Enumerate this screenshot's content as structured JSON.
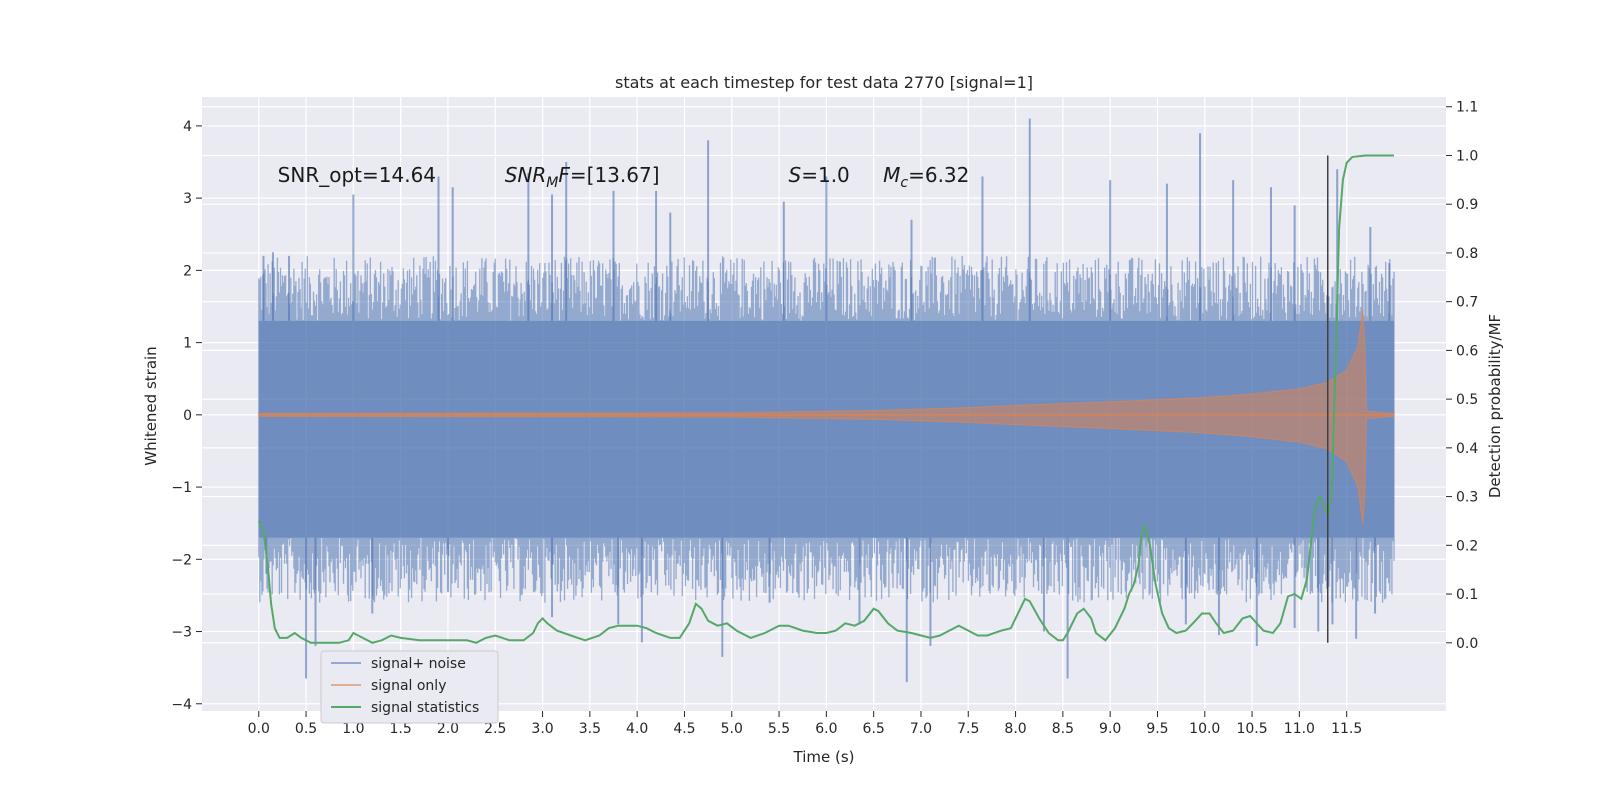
{
  "chart_data": {
    "type": "line",
    "title": "stats at each timestep for test data 2770 [signal=1]",
    "xlabel": "Time (s)",
    "ylabel": "Whitened strain",
    "ylabel_right": "Detection probability/MF",
    "xlim": [
      -0.6,
      12.55
    ],
    "ylim": [
      -4.1,
      4.4
    ],
    "ylim_right": [
      -0.14,
      1.12
    ],
    "x_ticks": [
      0.0,
      0.5,
      1.0,
      1.5,
      2.0,
      2.5,
      3.0,
      3.5,
      4.0,
      4.5,
      5.0,
      5.5,
      6.0,
      6.5,
      7.0,
      7.5,
      8.0,
      8.5,
      9.0,
      9.5,
      10.0,
      10.5,
      11.0,
      11.5
    ],
    "x_tick_labels": [
      "0.0",
      "0.5",
      "1.0",
      "1.5",
      "2.0",
      "2.5",
      "3.0",
      "3.5",
      "4.0",
      "4.5",
      "5.0",
      "5.5",
      "6.0",
      "6.5",
      "7.0",
      "7.5",
      "8.0",
      "8.5",
      "9.0",
      "9.5",
      "10.0",
      "10.5",
      "11.0",
      "11.5"
    ],
    "y_ticks": [
      -4,
      -3,
      -2,
      -1,
      0,
      1,
      2,
      3,
      4
    ],
    "y_tick_labels": [
      "−4",
      "−3",
      "−2",
      "−1",
      "0",
      "1",
      "2",
      "3",
      "4"
    ],
    "y_ticks_right": [
      0.0,
      0.1,
      0.2,
      0.3,
      0.4,
      0.5,
      0.6,
      0.7,
      0.8,
      0.9,
      1.0,
      1.1
    ],
    "y_tick_labels_right": [
      "0.0",
      "0.1",
      "0.2",
      "0.3",
      "0.4",
      "0.5",
      "0.6",
      "0.7",
      "0.8",
      "0.9",
      "1.0",
      "1.1"
    ],
    "grid": true,
    "legend_position": "lower-left",
    "background_color": "#eaeaf2",
    "series": [
      {
        "name": "signal+ noise",
        "color": "#4c72b0",
        "kind": "noise_band",
        "x_range": [
          0.0,
          12.0
        ],
        "envelope": {
          "typical_min": -1.7,
          "typical_max": 1.3
        },
        "spikes_up": [
          [
            0.05,
            2.2
          ],
          [
            0.15,
            2.25
          ],
          [
            0.32,
            2.2
          ],
          [
            1.0,
            3.05
          ],
          [
            1.9,
            3.3
          ],
          [
            2.05,
            3.15
          ],
          [
            2.85,
            3.35
          ],
          [
            3.1,
            3.05
          ],
          [
            3.25,
            3.5
          ],
          [
            3.75,
            3.1
          ],
          [
            4.2,
            3.1
          ],
          [
            4.35,
            2.8
          ],
          [
            4.75,
            3.8
          ],
          [
            5.55,
            2.95
          ],
          [
            6.0,
            3.3
          ],
          [
            6.9,
            2.7
          ],
          [
            7.65,
            3.3
          ],
          [
            8.15,
            4.1
          ],
          [
            9.0,
            3.25
          ],
          [
            9.6,
            3.2
          ],
          [
            9.95,
            3.9
          ],
          [
            10.3,
            3.25
          ],
          [
            10.7,
            3.15
          ],
          [
            10.95,
            2.9
          ],
          [
            11.4,
            3.4
          ],
          [
            11.75,
            2.6
          ],
          [
            11.95,
            2.1
          ]
        ],
        "spikes_down": [
          [
            0.08,
            -2.2
          ],
          [
            0.5,
            -3.65
          ],
          [
            0.6,
            -3.2
          ],
          [
            1.2,
            -2.75
          ],
          [
            2.0,
            -2.45
          ],
          [
            3.1,
            -2.8
          ],
          [
            3.8,
            -2.9
          ],
          [
            4.05,
            -3.15
          ],
          [
            4.9,
            -3.35
          ],
          [
            5.4,
            -2.6
          ],
          [
            6.35,
            -2.9
          ],
          [
            6.85,
            -3.7
          ],
          [
            7.1,
            -3.2
          ],
          [
            8.3,
            -3.0
          ],
          [
            8.55,
            -3.65
          ],
          [
            9.8,
            -2.9
          ],
          [
            10.15,
            -3.05
          ],
          [
            10.55,
            -3.2
          ],
          [
            10.95,
            -2.95
          ],
          [
            11.2,
            -3.0
          ],
          [
            11.35,
            -2.9
          ],
          [
            11.6,
            -3.1
          ],
          [
            11.8,
            -2.75
          ]
        ]
      },
      {
        "name": "signal only",
        "color": "#dd8452",
        "kind": "chirp_envelope",
        "points": [
          [
            0.0,
            0.02
          ],
          [
            5.0,
            0.03
          ],
          [
            6.5,
            0.06
          ],
          [
            7.5,
            0.1
          ],
          [
            8.0,
            0.13
          ],
          [
            9.0,
            0.18
          ],
          [
            10.0,
            0.24
          ],
          [
            10.5,
            0.29
          ],
          [
            11.0,
            0.36
          ],
          [
            11.3,
            0.45
          ],
          [
            11.5,
            0.62
          ],
          [
            11.62,
            0.95
          ],
          [
            11.67,
            1.45
          ],
          [
            11.69,
            1.1
          ],
          [
            11.71,
            0.05
          ],
          [
            12.0,
            0.02
          ]
        ]
      },
      {
        "name": "signal statistics",
        "color": "#55a868",
        "axis": "right",
        "points": [
          [
            0.0,
            0.25
          ],
          [
            0.05,
            0.23
          ],
          [
            0.1,
            0.15
          ],
          [
            0.13,
            0.08
          ],
          [
            0.17,
            0.03
          ],
          [
            0.22,
            0.01
          ],
          [
            0.3,
            0.01
          ],
          [
            0.38,
            0.02
          ],
          [
            0.45,
            0.01
          ],
          [
            0.55,
            0.0
          ],
          [
            0.7,
            0.0
          ],
          [
            0.85,
            0.0
          ],
          [
            0.95,
            0.005
          ],
          [
            1.0,
            0.02
          ],
          [
            1.1,
            0.01
          ],
          [
            1.2,
            0.0
          ],
          [
            1.3,
            0.005
          ],
          [
            1.4,
            0.015
          ],
          [
            1.5,
            0.01
          ],
          [
            1.7,
            0.005
          ],
          [
            2.0,
            0.005
          ],
          [
            2.2,
            0.005
          ],
          [
            2.3,
            0.0
          ],
          [
            2.4,
            0.01
          ],
          [
            2.5,
            0.015
          ],
          [
            2.65,
            0.005
          ],
          [
            2.8,
            0.005
          ],
          [
            2.9,
            0.02
          ],
          [
            2.95,
            0.04
          ],
          [
            3.0,
            0.05
          ],
          [
            3.05,
            0.04
          ],
          [
            3.15,
            0.025
          ],
          [
            3.3,
            0.015
          ],
          [
            3.45,
            0.005
          ],
          [
            3.6,
            0.015
          ],
          [
            3.7,
            0.03
          ],
          [
            3.8,
            0.035
          ],
          [
            3.9,
            0.035
          ],
          [
            4.0,
            0.035
          ],
          [
            4.1,
            0.03
          ],
          [
            4.2,
            0.02
          ],
          [
            4.35,
            0.01
          ],
          [
            4.45,
            0.01
          ],
          [
            4.55,
            0.04
          ],
          [
            4.62,
            0.08
          ],
          [
            4.68,
            0.07
          ],
          [
            4.75,
            0.045
          ],
          [
            4.85,
            0.035
          ],
          [
            4.95,
            0.04
          ],
          [
            5.05,
            0.025
          ],
          [
            5.2,
            0.01
          ],
          [
            5.35,
            0.02
          ],
          [
            5.5,
            0.035
          ],
          [
            5.6,
            0.035
          ],
          [
            5.75,
            0.025
          ],
          [
            5.9,
            0.02
          ],
          [
            6.0,
            0.02
          ],
          [
            6.1,
            0.025
          ],
          [
            6.2,
            0.04
          ],
          [
            6.3,
            0.035
          ],
          [
            6.4,
            0.045
          ],
          [
            6.5,
            0.07
          ],
          [
            6.55,
            0.065
          ],
          [
            6.65,
            0.04
          ],
          [
            6.75,
            0.025
          ],
          [
            6.9,
            0.02
          ],
          [
            7.0,
            0.015
          ],
          [
            7.1,
            0.01
          ],
          [
            7.2,
            0.015
          ],
          [
            7.3,
            0.025
          ],
          [
            7.4,
            0.035
          ],
          [
            7.5,
            0.025
          ],
          [
            7.6,
            0.015
          ],
          [
            7.7,
            0.015
          ],
          [
            7.85,
            0.025
          ],
          [
            7.95,
            0.03
          ],
          [
            8.05,
            0.07
          ],
          [
            8.1,
            0.09
          ],
          [
            8.15,
            0.085
          ],
          [
            8.25,
            0.05
          ],
          [
            8.35,
            0.02
          ],
          [
            8.45,
            0.005
          ],
          [
            8.5,
            0.005
          ],
          [
            8.55,
            0.02
          ],
          [
            8.65,
            0.06
          ],
          [
            8.72,
            0.07
          ],
          [
            8.8,
            0.05
          ],
          [
            8.85,
            0.02
          ],
          [
            8.95,
            0.005
          ],
          [
            9.05,
            0.03
          ],
          [
            9.15,
            0.07
          ],
          [
            9.2,
            0.1
          ],
          [
            9.25,
            0.12
          ],
          [
            9.3,
            0.16
          ],
          [
            9.33,
            0.22
          ],
          [
            9.37,
            0.24
          ],
          [
            9.42,
            0.2
          ],
          [
            9.48,
            0.12
          ],
          [
            9.55,
            0.06
          ],
          [
            9.62,
            0.03
          ],
          [
            9.7,
            0.02
          ],
          [
            9.8,
            0.025
          ],
          [
            9.9,
            0.045
          ],
          [
            9.97,
            0.06
          ],
          [
            10.05,
            0.06
          ],
          [
            10.12,
            0.04
          ],
          [
            10.2,
            0.02
          ],
          [
            10.3,
            0.025
          ],
          [
            10.4,
            0.05
          ],
          [
            10.48,
            0.055
          ],
          [
            10.55,
            0.04
          ],
          [
            10.62,
            0.025
          ],
          [
            10.72,
            0.02
          ],
          [
            10.8,
            0.04
          ],
          [
            10.88,
            0.095
          ],
          [
            10.95,
            0.1
          ],
          [
            11.02,
            0.09
          ],
          [
            11.08,
            0.13
          ],
          [
            11.12,
            0.2
          ],
          [
            11.17,
            0.28
          ],
          [
            11.22,
            0.3
          ],
          [
            11.26,
            0.28
          ],
          [
            11.3,
            0.26
          ],
          [
            11.34,
            0.3
          ],
          [
            11.38,
            0.55
          ],
          [
            11.42,
            0.85
          ],
          [
            11.46,
            0.95
          ],
          [
            11.5,
            0.985
          ],
          [
            11.56,
            0.997
          ],
          [
            11.7,
            1.0
          ],
          [
            11.9,
            1.0
          ],
          [
            12.0,
            1.0
          ]
        ]
      }
    ],
    "threshold_line": {
      "x": 11.3,
      "y_top": 1.0,
      "y_bottom": 0.0,
      "color": "#404040"
    },
    "annotations": [
      {
        "key": "snr_opt",
        "text": "SNR_opt=14.64",
        "x": 0.2,
        "y": 3.32
      },
      {
        "key": "snr_mf",
        "text": "SNR_MF=[13.67]",
        "x": 2.6,
        "y": 3.32
      },
      {
        "key": "s",
        "text": "S=1.0",
        "x": 5.6,
        "y": 3.32
      },
      {
        "key": "mc",
        "text": "M_c=6.32",
        "x": 6.6,
        "y": 3.32
      }
    ]
  }
}
